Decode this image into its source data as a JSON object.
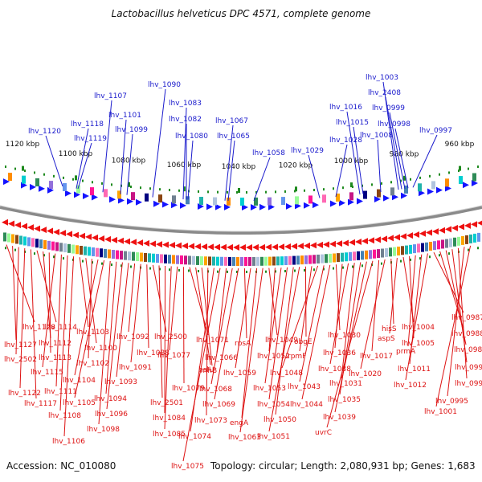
{
  "title": "Lactobacillus helveticus DPC 4571, complete genome",
  "footer": {
    "accession": "Accession: NC_010080",
    "summary": "Topology: circular; Length: 2,080,931 bp; Genes: 1,683"
  },
  "colors": {
    "forward_label": "#1a1acc",
    "reverse_label": "#dd1111",
    "backbone": "#8a8a8a",
    "tick": "#1e8a1e"
  },
  "kbp_ticks": [
    "1120 kbp",
    "1100 kbp",
    "1080 kbp",
    "1060 kbp",
    "1040 kbp",
    "1020 kbp",
    "1000 kbp",
    "980 kbp",
    "960 kbp"
  ],
  "forward_genes": [
    "lhv_1120",
    "lhv_1118",
    "lhv_1119",
    "lhv_1107",
    "lhv_1101",
    "lhv_1099",
    "lhv_1090",
    "lhv_1083",
    "lhv_1082",
    "lhv_1080",
    "lhv_1067",
    "lhv_1065",
    "lhv_1058",
    "lhv_1029",
    "lhv_1028",
    "lhv_1016",
    "lhv_1015",
    "lhv_1008",
    "lhv_1003",
    "lhv_2408",
    "lhv_0999",
    "lhv_0998",
    "lhv_0997"
  ],
  "reverse_genes": [
    "lhv_1128",
    "lhv_1127",
    "lhv_2502",
    "lhv_1122",
    "lhv_1117",
    "lhv_1114",
    "lhv_1112",
    "lhv_1113",
    "lhv_1115",
    "lhv_1111",
    "lhv_1108",
    "lhv_1106",
    "lhv_1103",
    "lhv_1100",
    "lhv_1102",
    "lhv_1104",
    "lhv_1105",
    "lhv_1098",
    "lhv_1094",
    "lhv_1096",
    "lhv_1093",
    "lhv_1092",
    "lhv_1091",
    "lhv_1088",
    "lhv_2500",
    "lhv_2501",
    "lhv_1084",
    "lhv_1085",
    "lhv_1077",
    "lhv_1079",
    "lhv_1071",
    "hslU",
    "rnhB",
    "lhv_1073",
    "lhv_1074",
    "lhv_1075",
    "lhv_1066",
    "lhv_1068",
    "lhv_1069",
    "rpsA",
    "lhv_1059",
    "engA",
    "lhv_1063",
    "lhv_1049",
    "lhv_1052",
    "lhv_1053",
    "lhv_1054",
    "lhv_1050",
    "lhv_1051",
    "obgE",
    "rpmF",
    "lhv_1048",
    "lhv_1043",
    "lhv_1044",
    "lhv_1030",
    "lhv_1036",
    "lhv_1038",
    "lhv_1031",
    "lhv_1035",
    "lhv_1039",
    "uvrC",
    "lhv_1017",
    "lhv_1020",
    "hisS",
    "aspS",
    "lhv_1004",
    "lhv_1005",
    "prmA",
    "lhv_1011",
    "lhv_1012",
    "lhv_0987",
    "lhv_0988",
    "lhv_0989",
    "lhv_0990",
    "lhv_0991",
    "lhv_0995",
    "lhv_1001"
  ]
}
